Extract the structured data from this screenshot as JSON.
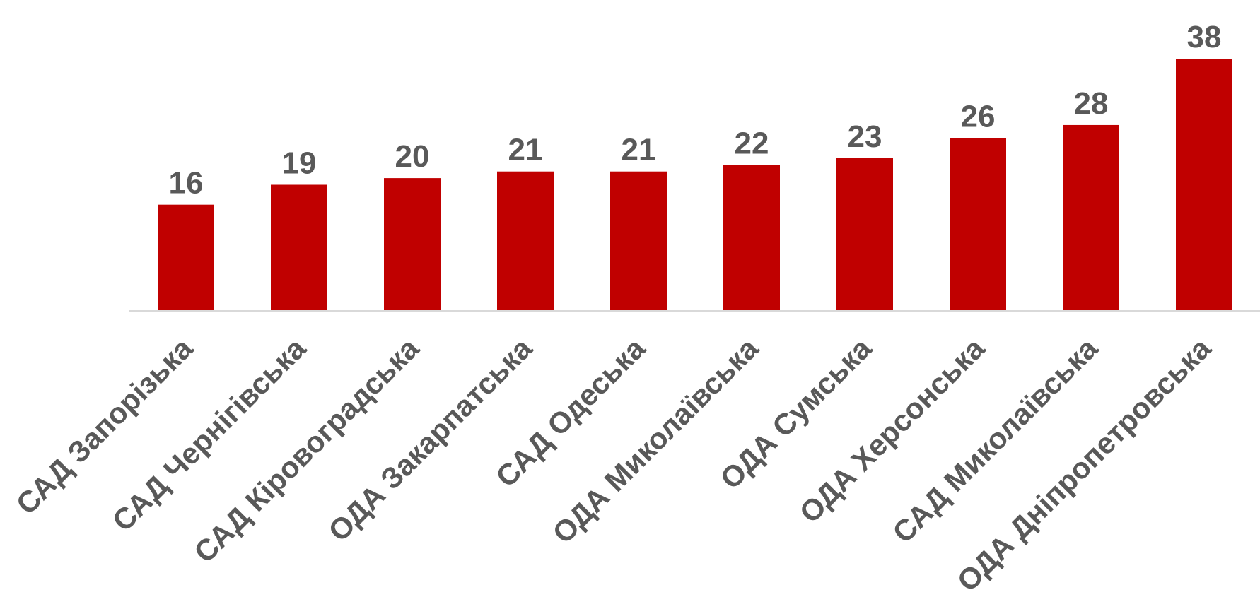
{
  "chart_data": {
    "type": "bar",
    "categories": [
      "САД Запорізька",
      "САД Чернігівська",
      "САД Кіровоградська",
      "ОДА Закарпатська",
      "САД Одеська",
      "ОДА Миколаївська",
      "ОДА Сумська",
      "ОДА Херсонська",
      "САД Миколаївська",
      "ОДА Дніпропетровська"
    ],
    "values": [
      16,
      19,
      20,
      21,
      21,
      22,
      23,
      26,
      28,
      38
    ],
    "data_labels": [
      "16",
      "19",
      "20",
      "21",
      "21",
      "22",
      "23",
      "26",
      "28",
      "38"
    ],
    "title": "",
    "xlabel": "",
    "ylabel": "",
    "ylim": [
      0,
      38
    ],
    "grid": false,
    "legend": "none",
    "colors": {
      "bar": "#C00000",
      "axis": "#D9D9D9",
      "text": "#595959"
    }
  }
}
